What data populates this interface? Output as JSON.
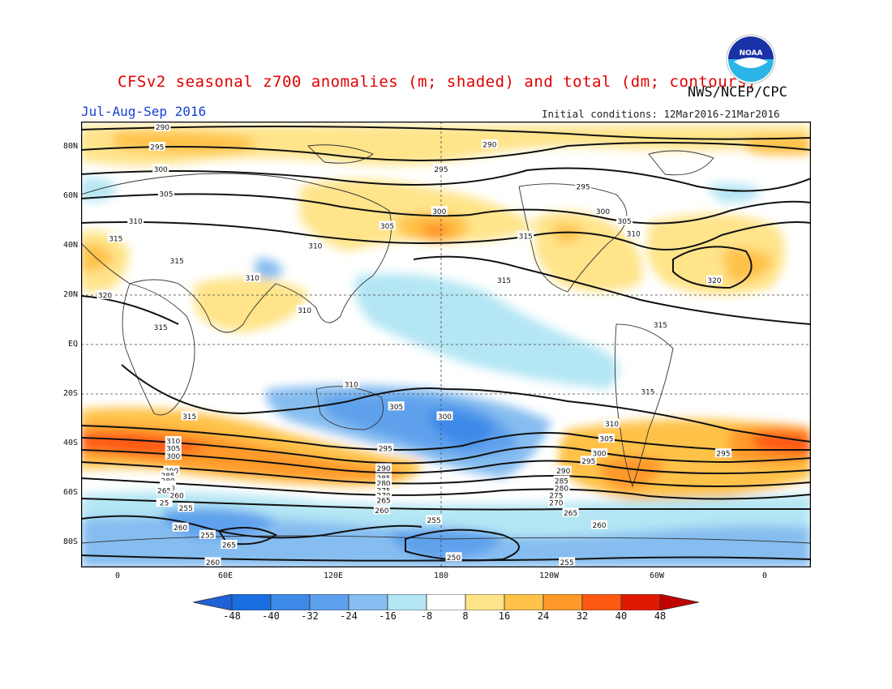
{
  "header": {
    "title": "CFSv2 seasonal z700 anomalies (m; shaded) and total (dm; contours)",
    "agency": "NWS/NCEP/CPC",
    "period": "Jul-Aug-Sep 2016",
    "initial_conditions": "Initial conditions: 12Mar2016-21Mar2016",
    "logo_text": "NOAA"
  },
  "axes": {
    "lat_labels": [
      "80N",
      "60N",
      "40N",
      "20N",
      "EQ",
      "20S",
      "40S",
      "60S",
      "80S"
    ],
    "lon_labels": [
      "0",
      "60E",
      "120E",
      "180",
      "120W",
      "60W",
      "0"
    ]
  },
  "colorbar": {
    "labels": [
      "-48",
      "-40",
      "-32",
      "-24",
      "-16",
      "-8",
      "8",
      "16",
      "24",
      "32",
      "40",
      "48"
    ],
    "colors": [
      "#1a6ee0",
      "#3d8ae8",
      "#5ea1ec",
      "#86bdf0",
      "#b4e6f4",
      "#ffffff",
      "#ffe48a",
      "#ffc24a",
      "#ff9a2a",
      "#ff5a14",
      "#e01a00"
    ],
    "under_color": "#2060d8",
    "over_color": "#c00000"
  },
  "contour_labels": [
    {
      "text": "290",
      "lat": 88,
      "lon": 25
    },
    {
      "text": "295",
      "lat": 80,
      "lon": 22
    },
    {
      "text": "300",
      "lat": 71,
      "lon": 24
    },
    {
      "text": "305",
      "lat": 61,
      "lon": 27
    },
    {
      "text": "310",
      "lat": 50,
      "lon": 10
    },
    {
      "text": "315",
      "lat": 34,
      "lon": 33
    },
    {
      "text": "320",
      "lat": 20,
      "lon": -7
    },
    {
      "text": "315",
      "lat": 7,
      "lon": 24
    },
    {
      "text": "310",
      "lat": 40,
      "lon": 110
    },
    {
      "text": "310",
      "lat": 27,
      "lon": 75
    },
    {
      "text": "310",
      "lat": 14,
      "lon": 104
    },
    {
      "text": "305",
      "lat": 48,
      "lon": 150
    },
    {
      "text": "300",
      "lat": 54,
      "lon": 179
    },
    {
      "text": "295",
      "lat": 71,
      "lon": 180
    },
    {
      "text": "290",
      "lat": 81,
      "lon": -153
    },
    {
      "text": "295",
      "lat": 64,
      "lon": -101
    },
    {
      "text": "300",
      "lat": 54,
      "lon": -90
    },
    {
      "text": "305",
      "lat": 50,
      "lon": -78
    },
    {
      "text": "310",
      "lat": 45,
      "lon": -73
    },
    {
      "text": "315",
      "lat": 44,
      "lon": -133
    },
    {
      "text": "315",
      "lat": 26,
      "lon": -145
    },
    {
      "text": "320",
      "lat": 26,
      "lon": -28
    },
    {
      "text": "315",
      "lat": 43,
      "lon": -1
    },
    {
      "text": "315",
      "lat": 8,
      "lon": -58
    },
    {
      "text": "315",
      "lat": -19,
      "lon": -65
    },
    {
      "text": "310",
      "lat": -16,
      "lon": 130
    },
    {
      "text": "305",
      "lat": -25,
      "lon": 155
    },
    {
      "text": "300",
      "lat": -29,
      "lon": 182
    },
    {
      "text": "295",
      "lat": -42,
      "lon": 149
    },
    {
      "text": "315",
      "lat": -29,
      "lon": 40
    },
    {
      "text": "310",
      "lat": -39,
      "lon": 31
    },
    {
      "text": "305",
      "lat": -42,
      "lon": 31
    },
    {
      "text": "300",
      "lat": -45,
      "lon": 31
    },
    {
      "text": "290",
      "lat": -51,
      "lon": 30
    },
    {
      "text": "285",
      "lat": -53,
      "lon": 28
    },
    {
      "text": "280",
      "lat": -55,
      "lon": 28
    },
    {
      "text": "275",
      "lat": -57,
      "lon": 28
    },
    {
      "text": "270",
      "lat": -58,
      "lon": 28
    },
    {
      "text": "265",
      "lat": -59,
      "lon": 26
    },
    {
      "text": "260",
      "lat": -61,
      "lon": 33
    },
    {
      "text": "255",
      "lat": -66,
      "lon": 38
    },
    {
      "text": "260",
      "lat": -74,
      "lon": 35
    },
    {
      "text": "255",
      "lat": -77,
      "lon": 50
    },
    {
      "text": "265",
      "lat": -81,
      "lon": 62
    },
    {
      "text": "260",
      "lat": -88,
      "lon": 53
    },
    {
      "text": "290",
      "lat": -50,
      "lon": 148
    },
    {
      "text": "285",
      "lat": -54,
      "lon": 148
    },
    {
      "text": "280",
      "lat": -56,
      "lon": 148
    },
    {
      "text": "275",
      "lat": -59,
      "lon": 148
    },
    {
      "text": "270",
      "lat": -61,
      "lon": 148
    },
    {
      "text": "265",
      "lat": -63,
      "lon": 148
    },
    {
      "text": "260",
      "lat": -67,
      "lon": 147
    },
    {
      "text": "255",
      "lat": -71,
      "lon": 176
    },
    {
      "text": "250",
      "lat": -86,
      "lon": 187
    },
    {
      "text": "255",
      "lat": -88,
      "lon": 250
    },
    {
      "text": "260",
      "lat": -73,
      "lon": 268
    },
    {
      "text": "265",
      "lat": -68,
      "lon": 252
    },
    {
      "text": "270",
      "lat": -64,
      "lon": 244
    },
    {
      "text": "275",
      "lat": -61,
      "lon": 244
    },
    {
      "text": "280",
      "lat": -58,
      "lon": 247
    },
    {
      "text": "285",
      "lat": -55,
      "lon": 247
    },
    {
      "text": "290",
      "lat": -51,
      "lon": 248
    },
    {
      "text": "295",
      "lat": -47,
      "lon": 262
    },
    {
      "text": "300",
      "lat": -44,
      "lon": 268
    },
    {
      "text": "305",
      "lat": -38,
      "lon": 272
    },
    {
      "text": "310",
      "lat": -32,
      "lon": 275
    },
    {
      "text": "295",
      "lat": -44,
      "lon": -23
    },
    {
      "text": "25",
      "lat": -64,
      "lon": 26
    }
  ]
}
